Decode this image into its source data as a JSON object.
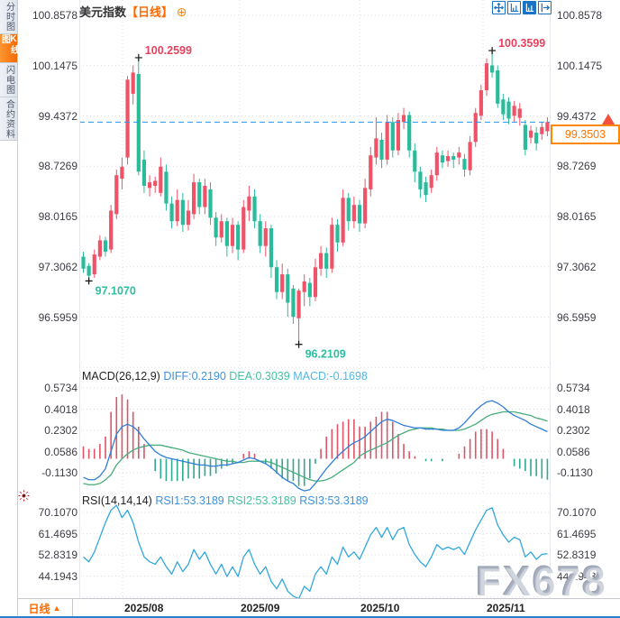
{
  "header": {
    "title": "美元指数",
    "period_tag": "【日线】"
  },
  "sidebar": {
    "tabs": [
      {
        "label": "分时图",
        "active": false
      },
      {
        "label": "K线图",
        "active": true
      },
      {
        "label": "闪电图",
        "active": false
      },
      {
        "label": "合约资料",
        "active": false
      }
    ]
  },
  "toolbar": {
    "icons": [
      "crosshair",
      "axis-scale",
      "axis-scale-active",
      "pan-right"
    ]
  },
  "current_price": {
    "value": "99.3503"
  },
  "macd_header": {
    "title": "MACD(26,12,9)",
    "diff": "DIFF:0.2190",
    "dea": "DEA:0.3039",
    "macd": "MACD:-0.1698"
  },
  "rsi_header": {
    "title": "RSI(14,14,14)",
    "rsi1": "RSI1:53.3189",
    "rsi2": "RSI2:53.3189",
    "rsi3": "RSI3:53.3189"
  },
  "xaxis": {
    "period_label": "日线",
    "arrow": "▲",
    "dates": [
      "2025/08",
      "2025/09",
      "2025/10",
      "2025/11"
    ]
  },
  "watermark": "FX678",
  "colors": {
    "up": "#ef5368",
    "down": "#2abb9b",
    "diff_line": "#2f7ed8",
    "dea_line": "#46ad7c",
    "rsi_line": "#31a8dc",
    "hist_up": "#dd5566",
    "hist_down": "#2fa98f",
    "grid": "#dcdee6",
    "price_line": "#2196f3",
    "annotation_high": "#e8415f",
    "annotation_low": "#2cc0a0",
    "accent_orange": "#ff6a00",
    "icon_blue": "#1a72c5"
  },
  "chart_data": [
    {
      "id": "price",
      "type": "candlestick",
      "title": "美元指数 日线",
      "y_ticks": [
        "100.8578",
        "100.1475",
        "99.4372",
        "98.7269",
        "98.0165",
        "97.3062",
        "96.5959"
      ],
      "x_ticks": [
        "2025/08",
        "2025/09",
        "2025/10",
        "2025/11"
      ],
      "ylim": [
        95.89,
        100.86
      ],
      "current_price": 99.3503,
      "markers": [
        {
          "i": 10,
          "price": 100.2599,
          "label": "100.2599",
          "kind": "high"
        },
        {
          "i": 1,
          "price": 97.107,
          "label": "97.1070",
          "kind": "low"
        },
        {
          "i": 39,
          "price": 96.2109,
          "label": "96.2109",
          "kind": "low"
        },
        {
          "i": 74,
          "price": 100.3599,
          "label": "100.3599",
          "kind": "high"
        }
      ],
      "candles": [
        [
          97.45,
          97.52,
          97.22,
          97.28
        ],
        [
          97.32,
          97.36,
          97.107,
          97.18
        ],
        [
          97.2,
          97.55,
          97.15,
          97.48
        ],
        [
          97.45,
          97.75,
          97.4,
          97.68
        ],
        [
          97.68,
          97.73,
          97.45,
          97.52
        ],
        [
          97.55,
          98.18,
          97.5,
          98.1
        ],
        [
          98.05,
          98.68,
          97.98,
          98.6
        ],
        [
          98.55,
          98.85,
          98.4,
          98.72
        ],
        [
          98.85,
          100.0,
          98.75,
          99.95
        ],
        [
          99.75,
          100.15,
          99.6,
          100.05
        ],
        [
          100.03,
          100.2599,
          98.6,
          98.65
        ],
        [
          98.82,
          98.95,
          98.35,
          98.45
        ],
        [
          98.42,
          98.6,
          98.3,
          98.5
        ],
        [
          98.45,
          98.58,
          98.35,
          98.52
        ],
        [
          98.35,
          98.85,
          98.3,
          98.72
        ],
        [
          98.65,
          98.75,
          98.1,
          98.2
        ],
        [
          98.2,
          98.3,
          97.85,
          97.95
        ],
        [
          97.95,
          98.4,
          97.88,
          98.25
        ],
        [
          98.25,
          98.35,
          97.8,
          97.9
        ],
        [
          97.9,
          98.25,
          97.82,
          98.1
        ],
        [
          98.05,
          98.62,
          97.98,
          98.5
        ],
        [
          98.5,
          98.55,
          98.05,
          98.15
        ],
        [
          98.15,
          98.55,
          98.05,
          98.45
        ],
        [
          98.4,
          98.5,
          97.9,
          98.0
        ],
        [
          98.0,
          98.08,
          97.6,
          97.72
        ],
        [
          97.72,
          98.05,
          97.65,
          97.95
        ],
        [
          97.95,
          98.0,
          97.45,
          97.6
        ],
        [
          97.6,
          98.0,
          97.5,
          97.9
        ],
        [
          97.9,
          97.95,
          97.4,
          97.55
        ],
        [
          97.55,
          98.25,
          97.5,
          98.15
        ],
        [
          98.1,
          98.45,
          97.95,
          98.3
        ],
        [
          98.3,
          98.4,
          97.85,
          97.95
        ],
        [
          97.95,
          98.05,
          97.5,
          97.6
        ],
        [
          97.6,
          97.95,
          97.45,
          97.85
        ],
        [
          97.85,
          97.9,
          97.15,
          97.3
        ],
        [
          97.3,
          97.4,
          96.85,
          96.95
        ],
        [
          96.95,
          97.35,
          96.85,
          97.2
        ],
        [
          97.2,
          97.28,
          96.6,
          96.8
        ],
        [
          97.0,
          97.05,
          96.5,
          96.6
        ],
        [
          96.58,
          97.0,
          96.2109,
          96.97
        ],
        [
          96.95,
          97.2,
          96.75,
          97.1
        ],
        [
          97.08,
          97.15,
          96.75,
          96.88
        ],
        [
          96.88,
          97.42,
          96.82,
          97.3
        ],
        [
          97.28,
          97.6,
          97.18,
          97.5
        ],
        [
          97.5,
          97.58,
          97.15,
          97.28
        ],
        [
          97.28,
          98.0,
          97.22,
          97.9
        ],
        [
          97.9,
          97.98,
          97.52,
          97.65
        ],
        [
          97.65,
          98.4,
          97.6,
          98.28
        ],
        [
          98.28,
          98.35,
          97.82,
          97.95
        ],
        [
          97.95,
          98.3,
          97.85,
          98.18
        ],
        [
          98.18,
          98.25,
          97.8,
          97.92
        ],
        [
          97.92,
          98.55,
          97.85,
          98.42
        ],
        [
          98.4,
          99.0,
          98.3,
          98.88
        ],
        [
          98.85,
          99.42,
          98.75,
          99.12
        ],
        [
          99.1,
          99.2,
          98.7,
          98.82
        ],
        [
          98.82,
          99.45,
          98.75,
          99.35
        ],
        [
          99.35,
          99.42,
          98.85,
          98.95
        ],
        [
          98.95,
          99.48,
          98.88,
          99.38
        ],
        [
          99.35,
          99.55,
          99.25,
          99.45
        ],
        [
          99.45,
          99.5,
          98.85,
          98.95
        ],
        [
          98.95,
          99.05,
          98.5,
          98.65
        ],
        [
          98.65,
          98.72,
          98.28,
          98.4
        ],
        [
          98.5,
          98.58,
          98.22,
          98.32
        ],
        [
          98.42,
          98.68,
          98.35,
          98.6
        ],
        [
          98.6,
          99.0,
          98.52,
          98.92
        ],
        [
          98.88,
          98.95,
          98.7,
          98.78
        ],
        [
          98.8,
          98.95,
          98.72,
          98.87
        ],
        [
          98.87,
          98.92,
          98.7,
          98.82
        ],
        [
          98.85,
          99.0,
          98.75,
          98.92
        ],
        [
          98.83,
          98.9,
          98.58,
          98.68
        ],
        [
          98.67,
          99.15,
          98.6,
          99.07
        ],
        [
          99.07,
          99.55,
          99.0,
          99.48
        ],
        [
          99.44,
          99.88,
          99.38,
          99.8
        ],
        [
          99.8,
          100.25,
          99.72,
          100.18
        ],
        [
          100.15,
          100.3599,
          99.98,
          100.05
        ],
        [
          100.08,
          100.15,
          99.55,
          99.61
        ],
        [
          99.67,
          99.75,
          99.38,
          99.46
        ],
        [
          99.64,
          99.7,
          99.32,
          99.4
        ],
        [
          99.44,
          99.65,
          99.35,
          99.58
        ],
        [
          99.41,
          99.62,
          99.3,
          99.54
        ],
        [
          99.31,
          99.38,
          98.88,
          98.96
        ],
        [
          99.13,
          99.3,
          99.05,
          99.23
        ],
        [
          99.2,
          99.28,
          98.95,
          99.05
        ],
        [
          99.18,
          99.35,
          99.1,
          99.28
        ],
        [
          99.22,
          99.42,
          99.15,
          99.3503
        ]
      ]
    },
    {
      "id": "macd",
      "type": "bar+line",
      "params": "MACD(26,12,9)",
      "last": {
        "DIFF": 0.219,
        "DEA": 0.3039,
        "MACD": -0.1698
      },
      "y_ticks": [
        "0.5734",
        "0.4018",
        "0.2302",
        "0.0586",
        "-0.1130"
      ],
      "hist_rule": "2*(DIFF-DEA)",
      "series": [
        {
          "name": "DIFF",
          "values": [
            -0.15,
            -0.17,
            -0.17,
            -0.14,
            -0.08,
            0.06,
            0.2,
            0.26,
            0.28,
            0.26,
            0.22,
            0.16,
            0.11,
            0.06,
            0.03,
            0.01,
            0.0,
            -0.01,
            -0.02,
            -0.03,
            -0.04,
            -0.05,
            -0.05,
            -0.06,
            -0.06,
            -0.05,
            -0.05,
            -0.04,
            -0.03,
            -0.01,
            0.01,
            0.0,
            -0.02,
            -0.04,
            -0.07,
            -0.11,
            -0.15,
            -0.18,
            -0.2,
            -0.24,
            -0.26,
            -0.25,
            -0.2,
            -0.14,
            -0.08,
            -0.03,
            0.02,
            0.06,
            0.1,
            0.13,
            0.15,
            0.18,
            0.22,
            0.26,
            0.3,
            0.32,
            0.31,
            0.29,
            0.27,
            0.26,
            0.25,
            0.25,
            0.24,
            0.24,
            0.24,
            0.23,
            0.23,
            0.23,
            0.25,
            0.29,
            0.34,
            0.39,
            0.43,
            0.46,
            0.47,
            0.45,
            0.42,
            0.38,
            0.35,
            0.33,
            0.31,
            0.28,
            0.26,
            0.24,
            0.219
          ]
        },
        {
          "name": "DEA",
          "values": [
            -0.2,
            -0.21,
            -0.21,
            -0.2,
            -0.17,
            -0.13,
            -0.05,
            0.0,
            0.04,
            0.07,
            0.09,
            0.1,
            0.11,
            0.11,
            0.11,
            0.1,
            0.09,
            0.08,
            0.07,
            0.05,
            0.04,
            0.03,
            0.02,
            0.01,
            0.0,
            -0.01,
            -0.02,
            -0.02,
            -0.03,
            -0.03,
            -0.02,
            -0.02,
            -0.02,
            -0.02,
            -0.03,
            -0.05,
            -0.07,
            -0.09,
            -0.11,
            -0.13,
            -0.15,
            -0.17,
            -0.18,
            -0.18,
            -0.17,
            -0.15,
            -0.12,
            -0.09,
            -0.06,
            -0.03,
            0.02,
            0.05,
            0.07,
            0.09,
            0.11,
            0.13,
            0.16,
            0.19,
            0.21,
            0.23,
            0.24,
            0.25,
            0.25,
            0.25,
            0.24,
            0.24,
            0.23,
            0.23,
            0.23,
            0.24,
            0.26,
            0.28,
            0.31,
            0.34,
            0.36,
            0.37,
            0.38,
            0.38,
            0.38,
            0.37,
            0.36,
            0.35,
            0.33,
            0.32,
            0.304
          ]
        }
      ]
    },
    {
      "id": "rsi",
      "type": "line",
      "params": "RSI(14,14,14)",
      "last": {
        "RSI1": 53.3189,
        "RSI2": 53.3189,
        "RSI3": 53.3189
      },
      "y_ticks": [
        "70.1070",
        "61.4695",
        "52.8319",
        "44.1943"
      ],
      "series": [
        {
          "name": "RSI",
          "values": [
            52,
            50,
            54,
            60,
            66,
            71,
            73,
            68,
            71,
            66,
            58,
            52,
            50,
            49,
            52,
            48,
            45,
            50,
            46,
            49,
            55,
            51,
            54,
            49,
            45,
            49,
            44,
            48,
            44,
            52,
            55,
            49,
            45,
            48,
            42,
            39,
            43,
            38,
            36,
            35,
            40,
            38,
            45,
            48,
            45,
            52,
            49,
            56,
            52,
            54,
            51,
            56,
            61,
            64,
            60,
            64,
            59,
            63,
            64,
            57,
            53,
            50,
            48,
            52,
            57,
            55,
            56,
            55,
            56,
            53,
            58,
            63,
            67,
            71,
            72,
            65,
            61,
            58,
            60,
            59,
            52,
            54,
            51,
            53,
            53.32
          ]
        }
      ]
    }
  ]
}
